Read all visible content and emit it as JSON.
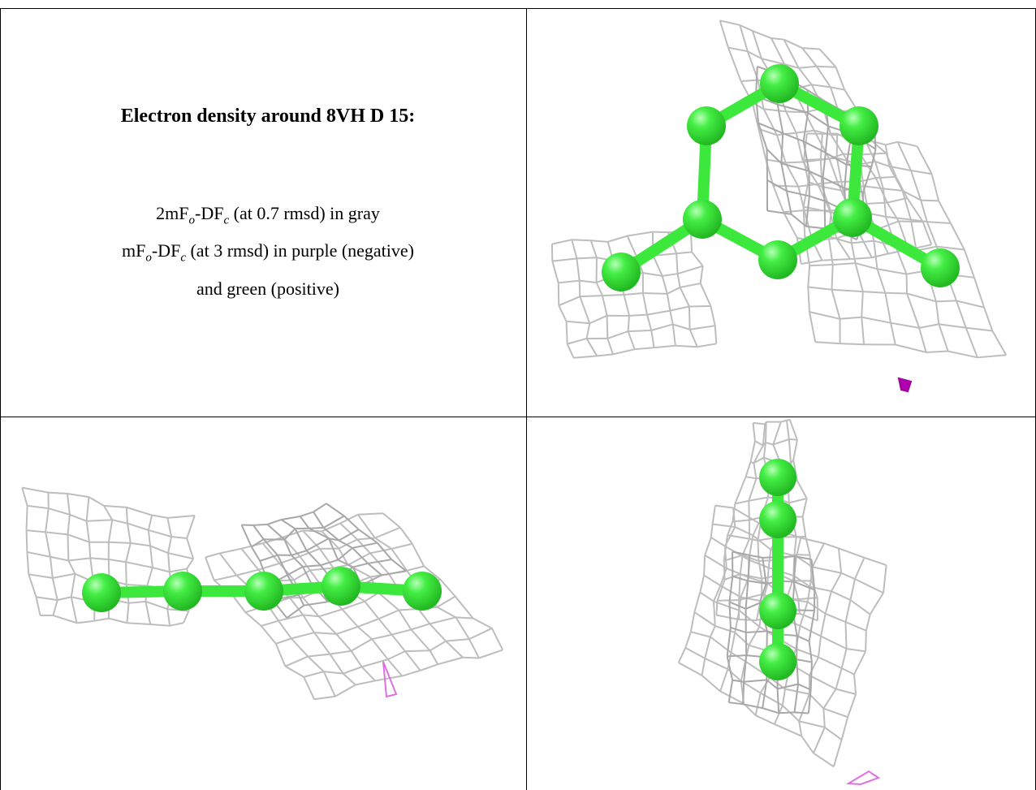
{
  "header": {
    "title": "Electron density around 8VH D 15:"
  },
  "legend": {
    "lines": [
      [
        "2mF",
        "o",
        "-DF",
        "c",
        " (at 0.7 rmsd) in gray"
      ],
      [
        "mF",
        "o",
        "-DF",
        "c",
        " (at 3 rmsd) in purple (negative)"
      ],
      [
        "and green (positive)"
      ]
    ]
  }
}
